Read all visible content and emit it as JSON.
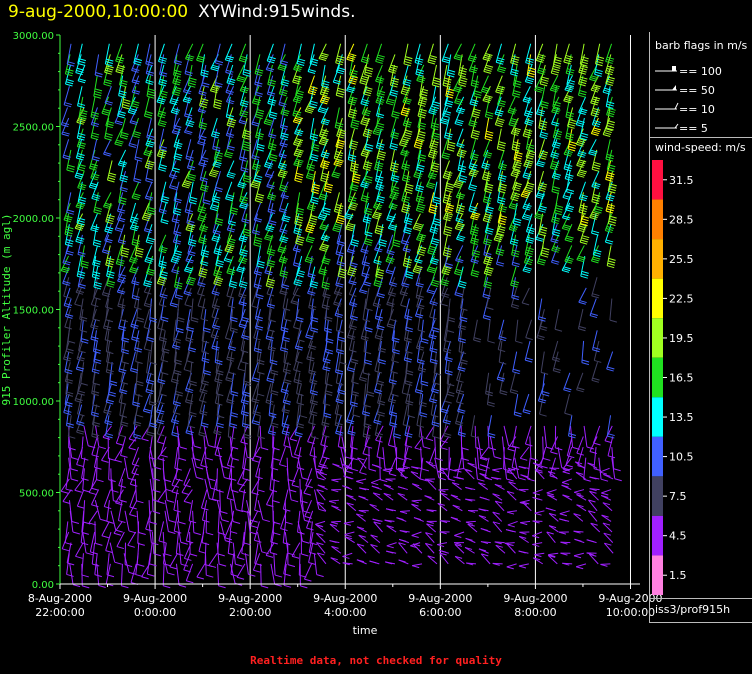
{
  "header": {
    "title_date": "9-aug-2000,10:00:00",
    "title_product": "XYWind:915winds."
  },
  "footer_note": "Realtime data, not checked for quality",
  "legend": {
    "barb_title": "barb flags in m/s",
    "barb_items": [
      "== 100",
      "== 50",
      "== 10",
      "== 5"
    ],
    "speed_title": "wind-speed: m/s",
    "speed_bins": [
      {
        "label": "31.5",
        "color": "#ff1040"
      },
      {
        "label": "28.5",
        "color": "#ff8000"
      },
      {
        "label": "25.5",
        "color": "#ffb000"
      },
      {
        "label": "22.5",
        "color": "#ffff00"
      },
      {
        "label": "19.5",
        "color": "#a0ff20"
      },
      {
        "label": "16.5",
        "color": "#20e020"
      },
      {
        "label": "13.5",
        "color": "#00ffff"
      },
      {
        "label": "10.5",
        "color": "#4060ff"
      },
      {
        "label": "7.5",
        "color": "#404060"
      },
      {
        "label": "4.5",
        "color": "#a020ff"
      },
      {
        "label": "1.5",
        "color": "#ff80e0"
      }
    ],
    "station": "iss3/prof915h"
  },
  "chart_data": {
    "type": "wind-barb time-height",
    "ylabel": "915 Profiler Altitude (m agl)",
    "xlabel": "time",
    "ylim": [
      0,
      3000
    ],
    "yticks": [
      "0.00",
      "500.00",
      "1000.00",
      "1500.00",
      "2000.00",
      "2500.00",
      "3000.00"
    ],
    "x_range_hours": [
      -2.0,
      10.2
    ],
    "xticks": [
      {
        "hour": -2,
        "date": "8-Aug-2000",
        "time": "22:00:00"
      },
      {
        "hour": 0,
        "date": "9-Aug-2000",
        "time": "0:00:00"
      },
      {
        "hour": 2,
        "date": "9-Aug-2000",
        "time": "2:00:00"
      },
      {
        "hour": 4,
        "date": "9-Aug-2000",
        "time": "4:00:00"
      },
      {
        "hour": 6,
        "date": "9-Aug-2000",
        "time": "6:00:00"
      },
      {
        "hour": 8,
        "date": "9-Aug-2000",
        "time": "8:00:00"
      },
      {
        "hour": 10,
        "date": "9-Aug-2000",
        "time": "10:00:00"
      }
    ],
    "vertical_grid": true,
    "colors": {
      "axis": "#40ff40",
      "grid": "#ffffff"
    }
  }
}
